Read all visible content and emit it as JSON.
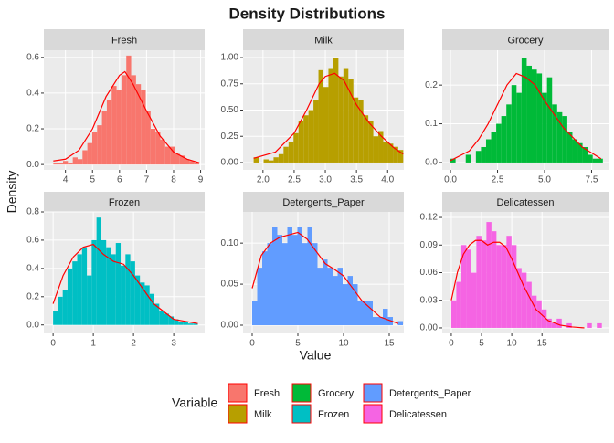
{
  "title": "Density Distributions",
  "xlabel": "Value",
  "ylabel": "Density",
  "legend_title": "Variable",
  "chart_data": [
    {
      "type": "histogram",
      "title": "Fresh",
      "color": "#F8766D",
      "line_color": "#FF0000",
      "bins": [
        3.55,
        3.73,
        3.91,
        4.09,
        4.27,
        4.45,
        4.63,
        4.81,
        4.99,
        5.17,
        5.35,
        5.53,
        5.71,
        5.89,
        6.07,
        6.25,
        6.43,
        6.61,
        6.79,
        6.97,
        7.15,
        7.33,
        7.51,
        7.69,
        7.87,
        8.05,
        8.23,
        8.41,
        8.59,
        8.77,
        8.95
      ],
      "values": [
        0.01,
        0.01,
        0.02,
        0.01,
        0.04,
        0.03,
        0.08,
        0.12,
        0.18,
        0.22,
        0.3,
        0.36,
        0.44,
        0.42,
        0.5,
        0.61,
        0.5,
        0.45,
        0.42,
        0.3,
        0.2,
        0.18,
        0.14,
        0.1,
        0.1,
        0.06,
        0.05,
        0.03,
        0.02,
        0.01
      ],
      "density": {
        "x": [
          3.55,
          4,
          4.5,
          5,
          5.5,
          6,
          6.2,
          6.5,
          7,
          7.5,
          8,
          8.5,
          8.95
        ],
        "y": [
          0.02,
          0.03,
          0.08,
          0.2,
          0.38,
          0.5,
          0.52,
          0.45,
          0.3,
          0.16,
          0.07,
          0.03,
          0.01
        ]
      },
      "xlim": [
        3.2,
        9.15
      ],
      "xticks": [
        4,
        5,
        6,
        7,
        8,
        9
      ],
      "ylim": [
        -0.03,
        0.64
      ],
      "yticks": [
        {
          "value": 0,
          "label": "0.0"
        },
        0.2,
        0.4,
        0.6
      ]
    },
    {
      "type": "histogram",
      "title": "Milk",
      "color": "#B79F00",
      "line_color": "#FF0000",
      "bins": [
        1.85,
        1.93,
        2.01,
        2.09,
        2.17,
        2.25,
        2.33,
        2.41,
        2.49,
        2.57,
        2.65,
        2.73,
        2.81,
        2.89,
        2.97,
        3.05,
        3.13,
        3.21,
        3.29,
        3.37,
        3.45,
        3.53,
        3.61,
        3.69,
        3.77,
        3.85,
        3.93,
        4.01,
        4.09,
        4.17,
        4.25
      ],
      "values": [
        0.05,
        0.0,
        0.03,
        0.02,
        0.05,
        0.08,
        0.15,
        0.2,
        0.28,
        0.4,
        0.45,
        0.5,
        0.6,
        0.88,
        0.72,
        0.9,
        1.0,
        0.82,
        0.9,
        0.8,
        0.62,
        0.6,
        0.45,
        0.4,
        0.25,
        0.3,
        0.2,
        0.18,
        0.15,
        0.12
      ],
      "density": {
        "x": [
          1.85,
          2.2,
          2.5,
          2.7,
          2.9,
          3.0,
          3.15,
          3.3,
          3.5,
          3.7,
          3.9,
          4.1,
          4.25
        ],
        "y": [
          0.04,
          0.1,
          0.28,
          0.5,
          0.75,
          0.82,
          0.85,
          0.78,
          0.55,
          0.38,
          0.25,
          0.14,
          0.08
        ]
      },
      "xlim": [
        1.68,
        4.26
      ],
      "xticks": [
        {
          "value": 2,
          "label": "2.0"
        },
        2.5,
        {
          "value": 3,
          "label": "3.0"
        },
        3.5,
        {
          "value": 4,
          "label": "4.0"
        }
      ],
      "ylim": [
        -0.07,
        1.07
      ],
      "yticks": [
        {
          "value": 0,
          "label": "0.00"
        },
        {
          "value": 0.25,
          "label": "0.25"
        },
        {
          "value": 0.5,
          "label": "0.50"
        },
        {
          "value": 0.75,
          "label": "0.75"
        },
        {
          "value": 1,
          "label": "1.00"
        }
      ]
    },
    {
      "type": "histogram",
      "title": "Grocery",
      "color": "#00BA38",
      "line_color": "#FF0000",
      "bins": [
        0,
        0.27,
        0.54,
        0.81,
        1.08,
        1.35,
        1.62,
        1.89,
        2.16,
        2.43,
        2.7,
        2.97,
        3.24,
        3.51,
        3.78,
        4.05,
        4.32,
        4.59,
        4.86,
        5.13,
        5.4,
        5.67,
        5.94,
        6.21,
        6.48,
        6.75,
        7.02,
        7.29,
        7.56,
        7.83,
        8.1
      ],
      "values": [
        0.01,
        0.0,
        0.0,
        0.02,
        0.0,
        0.03,
        0.04,
        0.06,
        0.08,
        0.1,
        0.12,
        0.15,
        0.2,
        0.18,
        0.27,
        0.25,
        0.24,
        0.23,
        0.18,
        0.22,
        0.15,
        0.13,
        0.12,
        0.08,
        0.06,
        0.05,
        0.04,
        0.02,
        0.01,
        0.01
      ],
      "density": {
        "x": [
          0,
          1,
          1.5,
          2,
          2.5,
          3,
          3.5,
          4,
          4.5,
          5,
          6,
          7,
          8
        ],
        "y": [
          0.005,
          0.03,
          0.06,
          0.1,
          0.15,
          0.2,
          0.23,
          0.22,
          0.2,
          0.16,
          0.09,
          0.04,
          0.01
        ]
      },
      "xlim": [
        -0.44,
        8.4
      ],
      "xticks": [
        {
          "value": 0,
          "label": "0.0"
        },
        2.5,
        {
          "value": 5,
          "label": "5.0"
        },
        7.5
      ],
      "ylim": [
        -0.019,
        0.29
      ],
      "yticks": [
        {
          "value": 0,
          "label": "0.0"
        },
        0.1,
        0.2
      ]
    },
    {
      "type": "histogram",
      "title": "Frozen",
      "color": "#00BFC4",
      "line_color": "#FF0000",
      "bins": [
        0,
        0.12,
        0.24,
        0.36,
        0.48,
        0.6,
        0.72,
        0.84,
        0.96,
        1.08,
        1.2,
        1.32,
        1.44,
        1.56,
        1.68,
        1.8,
        1.92,
        2.04,
        2.16,
        2.28,
        2.4,
        2.52,
        2.64,
        2.76,
        2.88,
        3.0,
        3.12,
        3.24,
        3.36,
        3.48,
        3.6
      ],
      "values": [
        0.1,
        0.2,
        0.25,
        0.4,
        0.45,
        0.5,
        0.55,
        0.35,
        0.6,
        0.76,
        0.6,
        0.55,
        0.5,
        0.58,
        0.42,
        0.5,
        0.45,
        0.35,
        0.3,
        0.28,
        0.22,
        0.15,
        0.1,
        0.08,
        0.06,
        0.04,
        0.02,
        0.02,
        0.01,
        0.01
      ],
      "density": {
        "x": [
          0,
          0.25,
          0.5,
          0.75,
          1,
          1.25,
          1.5,
          1.75,
          2,
          2.5,
          3,
          3.6
        ],
        "y": [
          0.15,
          0.35,
          0.48,
          0.55,
          0.57,
          0.5,
          0.45,
          0.43,
          0.35,
          0.15,
          0.04,
          0.01
        ]
      },
      "xlim": [
        -0.23,
        3.77
      ],
      "xticks": [
        0,
        1,
        2,
        3
      ],
      "ylim": [
        -0.06,
        0.8
      ],
      "yticks": [
        {
          "value": 0,
          "label": "0.0"
        },
        0.2,
        0.4,
        0.6,
        0.8
      ]
    },
    {
      "type": "histogram",
      "title": "Detergents_Paper",
      "color": "#619CFF",
      "line_color": "#FF0000",
      "bins": [
        0,
        0.55,
        1.1,
        1.65,
        2.2,
        2.75,
        3.3,
        3.85,
        4.4,
        4.95,
        5.5,
        6.05,
        6.6,
        7.15,
        7.7,
        8.25,
        8.8,
        9.35,
        9.9,
        10.45,
        11.0,
        11.55,
        12.1,
        12.65,
        13.2,
        13.75,
        14.3,
        14.85,
        15.4,
        15.95,
        16.5
      ],
      "values": [
        0.03,
        0.07,
        0.09,
        0.1,
        0.12,
        0.11,
        0.1,
        0.12,
        0.11,
        0.12,
        0.1,
        0.12,
        0.1,
        0.07,
        0.08,
        0.07,
        0.06,
        0.07,
        0.05,
        0.06,
        0.05,
        0.03,
        0.03,
        0.03,
        0.01,
        0.01,
        0.02,
        0.01,
        0.0,
        0.005
      ],
      "density": {
        "x": [
          0,
          1,
          2,
          3,
          4,
          5,
          6,
          7,
          8,
          9,
          10,
          11,
          12,
          14,
          16
        ],
        "y": [
          0.045,
          0.085,
          0.1,
          0.107,
          0.11,
          0.113,
          0.105,
          0.09,
          0.075,
          0.068,
          0.06,
          0.045,
          0.03,
          0.01,
          0.002
        ]
      },
      "xlim": [
        -1,
        16.6
      ],
      "xticks": [
        0,
        5,
        10,
        15
      ],
      "ylim": [
        -0.01,
        0.138
      ],
      "yticks": [
        {
          "value": 0,
          "label": "0.00"
        },
        {
          "value": 0.05,
          "label": "0.05"
        },
        {
          "value": 0.1,
          "label": "0.10"
        }
      ]
    },
    {
      "type": "histogram",
      "title": "Delicatessen",
      "color": "#F564E3",
      "line_color": "#FF0000",
      "bins": [
        0,
        0.83,
        1.66,
        2.49,
        3.32,
        4.15,
        4.98,
        5.81,
        6.64,
        7.47,
        8.3,
        9.13,
        9.96,
        10.79,
        11.62,
        12.45,
        13.28,
        14.11,
        14.94,
        15.77,
        16.6,
        17.43,
        18.26,
        19.09,
        19.92,
        20.75,
        21.58,
        22.41,
        23.24,
        24.07,
        24.9
      ],
      "values": [
        0.03,
        0.05,
        0.09,
        0.085,
        0.06,
        0.1,
        0.095,
        0.115,
        0.105,
        0.09,
        0.09,
        0.1,
        0.09,
        0.065,
        0.06,
        0.05,
        0.035,
        0.03,
        0.02,
        0.01,
        0.005,
        0.01,
        0.0,
        0.005,
        0.0,
        0.0,
        0.0,
        0.005,
        0.0,
        0.005
      ],
      "density": {
        "x": [
          0,
          1,
          2,
          3,
          4,
          5,
          6,
          7,
          8,
          9,
          10,
          12,
          14,
          16,
          18,
          20,
          22
        ],
        "y": [
          0.03,
          0.06,
          0.08,
          0.09,
          0.095,
          0.095,
          0.09,
          0.093,
          0.093,
          0.088,
          0.075,
          0.045,
          0.02,
          0.008,
          0.003,
          0.001,
          0.0
        ]
      },
      "xlim": [
        -1.5,
        26
      ],
      "xticks": [
        0,
        5,
        10,
        15
      ],
      "ylim": [
        -0.006,
        0.126
      ],
      "yticks": [
        {
          "value": 0,
          "label": "0.00"
        },
        {
          "value": 0.03,
          "label": "0.03"
        },
        {
          "value": 0.06,
          "label": "0.06"
        },
        {
          "value": 0.09,
          "label": "0.09"
        },
        {
          "value": 0.12,
          "label": "0.12"
        }
      ]
    }
  ]
}
